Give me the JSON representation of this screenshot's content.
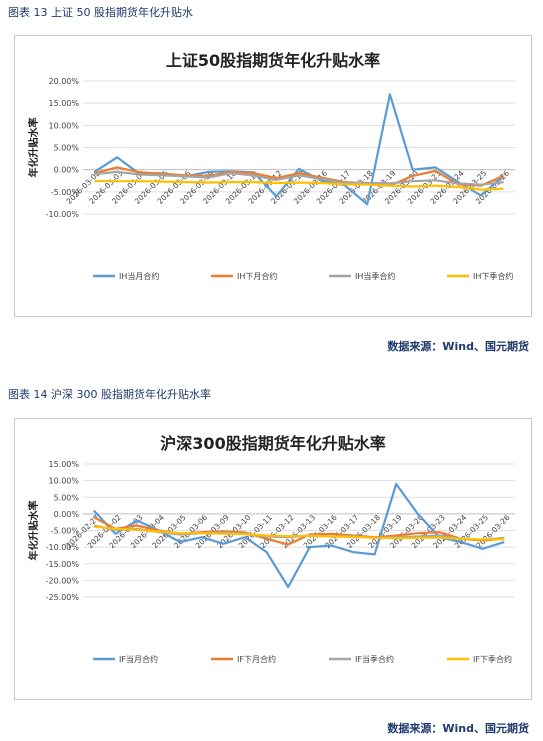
{
  "figures": [
    {
      "caption": "图表 13 上证 50 股指期货年化升贴水",
      "source": "数据来源：Wind、国元期货"
    },
    {
      "caption": "图表 14 沪深 300 股指期货年化升贴水率",
      "source": "数据来源：Wind、国元期货"
    }
  ],
  "chart_data": [
    {
      "type": "line",
      "title": "上证50股指期货年化升贴水率",
      "ylabel": "年化升贴水率",
      "xlabel": "",
      "ylim": [
        -10,
        20
      ],
      "ytick_step": 5,
      "ytick_labels": [
        "-10.00%",
        "-5.00%",
        "0.00%",
        "5.00%",
        "10.00%",
        "15.00%",
        "20.00%"
      ],
      "grid": "horizontal",
      "legend": "bottom",
      "x": [
        "2026-03-02",
        "2026-03-03",
        "2026-03-04",
        "2026-03-05",
        "2026-03-06",
        "2026-03-09",
        "2026-03-10",
        "2026-03-11",
        "2026-03-12",
        "2026-03-13",
        "2026-03-16",
        "2026-03-17",
        "2026-03-18",
        "2026-03-19",
        "2026-03-20",
        "2026-03-23",
        "2026-03-24",
        "2026-03-25",
        "2026-03-26"
      ],
      "xtick_labels": [
        "2026-03-02",
        "2026-03-03",
        "2026-03-04",
        "2026-03-05",
        "2026-03-06",
        "2026-03-09",
        "2026-03-10",
        "2026-03-11",
        "2026-03-12",
        "2026-03-13",
        "2026-03-16",
        "2026-03-17",
        "2026-03-18",
        "2026-03-19",
        "2026-03-20",
        "2026-03-23",
        "2026-03-24",
        "2026-03-25",
        "2026-03-26"
      ],
      "series": [
        {
          "name": "IH当月合约",
          "color": "#5b9bd5",
          "values": [
            -0.5,
            2.8,
            -1.0,
            -0.8,
            -1.5,
            -0.5,
            -0.4,
            -0.6,
            -6.0,
            0.2,
            -2.5,
            -3.5,
            -7.8,
            17.0,
            0.0,
            0.5,
            -2.8,
            -5.8,
            -1.5
          ]
        },
        {
          "name": "IH下月合约",
          "color": "#ed7d31",
          "values": [
            -0.8,
            0.5,
            -0.6,
            -0.9,
            -1.3,
            -1.4,
            -0.5,
            -0.8,
            -1.9,
            -0.8,
            -1.8,
            -2.8,
            -3.1,
            -3.6,
            -1.4,
            -0.3,
            -3.3,
            -3.6,
            -1.4
          ]
        },
        {
          "name": "IH当季合约",
          "color": "#a5a5a5",
          "values": [
            -1.0,
            -0.5,
            -1.1,
            -1.3,
            -1.5,
            -1.8,
            -0.8,
            -1.3,
            -2.3,
            -1.3,
            -2.1,
            -3.0,
            -3.0,
            -3.1,
            -2.6,
            -2.4,
            -3.1,
            -3.4,
            -2.8
          ]
        },
        {
          "name": "IH下季合约",
          "color": "#ffc000",
          "values": [
            -2.5,
            -2.6,
            -2.6,
            -2.7,
            -2.8,
            -2.9,
            -2.8,
            -2.8,
            -3.0,
            -2.9,
            -3.0,
            -3.3,
            -3.4,
            -3.6,
            -3.8,
            -3.6,
            -3.9,
            -4.5,
            -4.3
          ]
        }
      ]
    },
    {
      "type": "line",
      "title": "沪深300股指期货年化升贴水率",
      "ylabel": "年化升贴水率",
      "xlabel": "",
      "ylim": [
        -25,
        15
      ],
      "ytick_step": 5,
      "ytick_labels": [
        "-25.00%",
        "-20.00%",
        "-15.00%",
        "-10.00%",
        "-5.00%",
        "0.00%",
        "5.00%",
        "10.00%",
        "15.00%"
      ],
      "grid": "horizontal",
      "legend": "bottom",
      "x": [
        "2026-02-27",
        "2026-03-02",
        "2026-03-03",
        "2026-03-04",
        "2026-03-05",
        "2026-03-06",
        "2026-03-09",
        "2026-03-10",
        "2026-03-11",
        "2026-03-12",
        "2026-03-13",
        "2026-03-16",
        "2026-03-17",
        "2026-03-18",
        "2026-03-19",
        "2026-03-20",
        "2026-03-23",
        "2026-03-24",
        "2026-03-25",
        "2026-03-26"
      ],
      "xtick_labels": [
        "2026-02-27",
        "2026-03-02",
        "2026-03-03",
        "2026-03-04",
        "2026-03-05",
        "2026-03-06",
        "2026-03-09",
        "2026-03-10",
        "2026-03-11",
        "2026-03-12",
        "2026-03-13",
        "2026-03-16",
        "2026-03-17",
        "2026-03-18",
        "2026-03-19",
        "2026-03-20",
        "2026-03-23",
        "2026-03-24",
        "2026-03-25",
        "2026-03-26"
      ],
      "series": [
        {
          "name": "IF当月合约",
          "color": "#5b9bd5",
          "values": [
            1.0,
            -6.0,
            -2.0,
            -5.0,
            -8.5,
            -7.0,
            -9.0,
            -7.0,
            -11.5,
            -22.0,
            -10.0,
            -9.5,
            -11.5,
            -12.2,
            9.0,
            0.0,
            -7.0,
            -8.5,
            -10.5,
            -8.5
          ]
        },
        {
          "name": "IF下月合约",
          "color": "#ed7d31",
          "values": [
            -1.0,
            -4.5,
            -3.5,
            -5.0,
            -6.0,
            -5.5,
            -5.2,
            -5.6,
            -7.5,
            -9.2,
            -6.2,
            -6.0,
            -6.5,
            -7.0,
            -6.5,
            -5.8,
            -5.5,
            -7.5,
            -8.0,
            -7.5
          ]
        },
        {
          "name": "IF当季合约",
          "color": "#a5a5a5",
          "values": [
            -3.5,
            -4.8,
            -4.5,
            -5.5,
            -6.2,
            -5.8,
            -5.6,
            -6.0,
            -6.8,
            -7.0,
            -6.5,
            -6.8,
            -6.8,
            -7.2,
            -7.0,
            -6.8,
            -6.5,
            -7.5,
            -7.8,
            -7.2
          ]
        },
        {
          "name": "IF下季合约",
          "color": "#ffc000",
          "values": [
            -3.8,
            -4.5,
            -4.8,
            -5.3,
            -5.8,
            -5.8,
            -6.0,
            -6.1,
            -6.5,
            -6.7,
            -6.6,
            -6.8,
            -6.9,
            -7.2,
            -7.3,
            -7.2,
            -7.1,
            -7.5,
            -7.7,
            -7.6
          ]
        }
      ]
    }
  ]
}
